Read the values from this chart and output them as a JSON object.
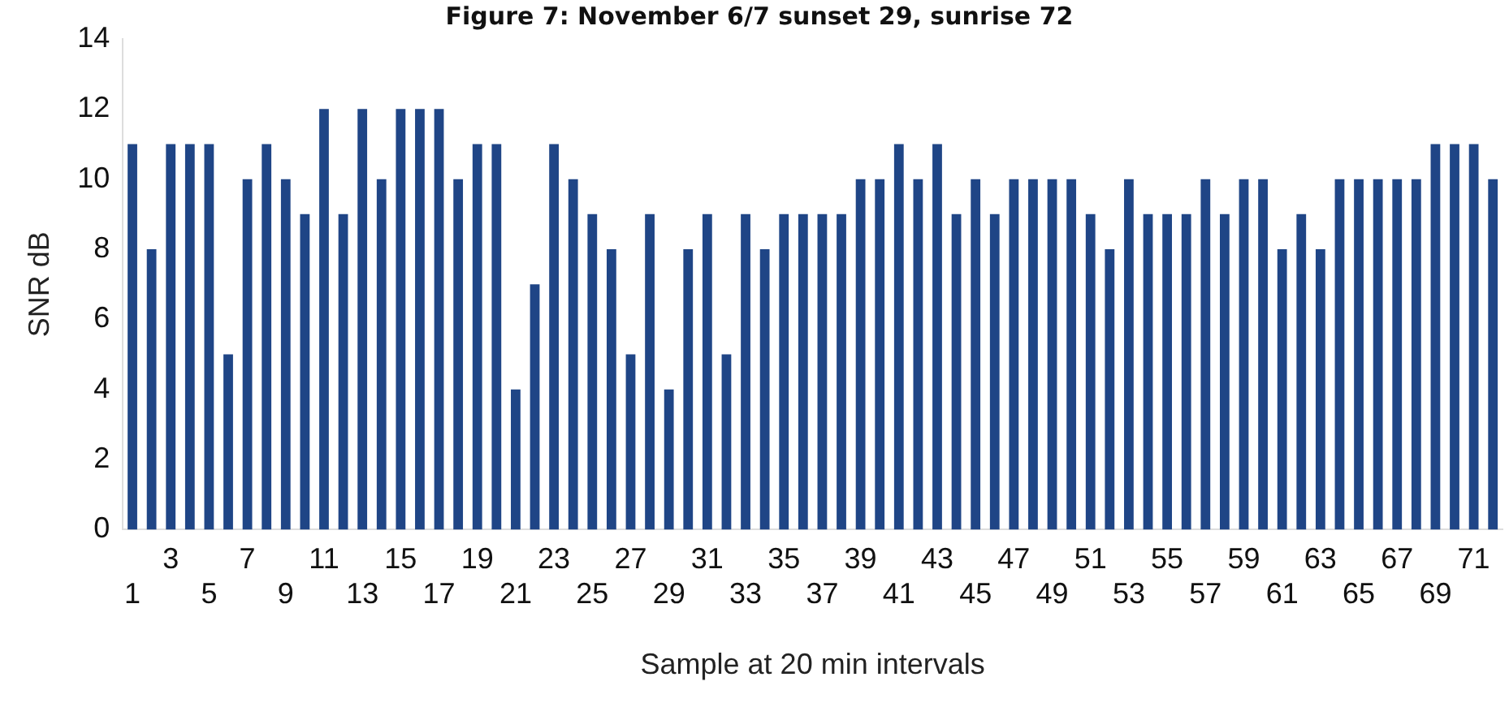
{
  "chart_data": {
    "type": "bar",
    "title": "Figure 7: November 6/7 sunset 29, sunrise 72",
    "xlabel": "Sample at 20 min intervals",
    "ylabel": "SNR dB",
    "categories": [
      "1",
      null,
      "3",
      null,
      "5",
      null,
      "7",
      null,
      "9",
      null,
      "11",
      null,
      "13",
      null,
      "15",
      null,
      "17",
      null,
      "19",
      null,
      "21",
      null,
      "23",
      null,
      "25",
      null,
      "27",
      null,
      "29",
      null,
      "31",
      null,
      "33",
      null,
      "35",
      null,
      "37",
      null,
      "39",
      null,
      "41",
      null,
      "43",
      null,
      "45",
      null,
      "47",
      null,
      "49",
      null,
      "51",
      null,
      "53",
      null,
      "55",
      null,
      "57",
      null,
      "59",
      null,
      "61",
      null,
      "63",
      null,
      "65",
      null,
      "67",
      null,
      "69",
      null,
      "71",
      null
    ],
    "values": [
      11,
      8,
      11,
      11,
      11,
      5,
      10,
      11,
      10,
      9,
      12,
      9,
      12,
      10,
      12,
      12,
      12,
      10,
      11,
      11,
      4,
      7,
      11,
      10,
      9,
      8,
      5,
      9,
      4,
      8,
      9,
      5,
      9,
      8,
      9,
      9,
      9,
      9,
      10,
      10,
      11,
      10,
      11,
      9,
      10,
      9,
      10,
      10,
      10,
      10,
      9,
      8,
      10,
      9,
      9,
      9,
      10,
      9,
      10,
      10,
      8,
      9,
      8,
      10,
      10,
      10,
      10,
      10,
      11,
      11,
      11,
      10
    ],
    "color": "#1f4586",
    "ylim": [
      0,
      14
    ],
    "yticks": [
      0,
      2,
      4,
      6,
      8,
      10,
      12,
      14
    ],
    "grid": false,
    "legend": false
  }
}
